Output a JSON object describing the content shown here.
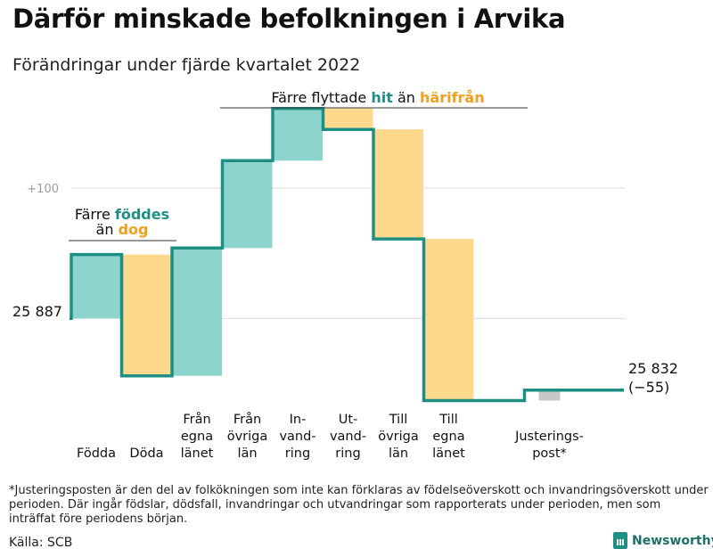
{
  "header": {
    "title": "Därför minskade befolkningen i Arvika",
    "subtitle": "Förändringar under fjärde kvartalet 2022"
  },
  "annotations": {
    "birth_group": {
      "prefix": "Färre ",
      "highlight1": "föddes",
      "line2_prefix": "än ",
      "highlight2": "dog"
    },
    "migration_group": {
      "prefix": "Färre flyttade ",
      "highlight1": "hit",
      "middle": " än ",
      "highlight2": "härifrån"
    },
    "start_label": "25 887",
    "end_label_line1": "25 832",
    "end_label_line2": "(−55)"
  },
  "colors": {
    "increase": "#8dd5cc",
    "decrease": "#fdd98e",
    "adjustment": "#c8c8c8",
    "line": "#1f8f86",
    "teal_text": "#1f8f86",
    "orange_text": "#f0a020",
    "grid": "#d9d9d9"
  },
  "chart_data": {
    "type": "waterfall",
    "start_value": 25887,
    "end_value": 25832,
    "net_change": -55,
    "yticks": [
      {
        "value": 25987,
        "label": "+100"
      }
    ],
    "ylim": [
      25825,
      26041
    ],
    "grid": true,
    "steps": [
      {
        "label_lines": [
          "",
          "",
          "Födda"
        ],
        "value": 49,
        "kind": "increase"
      },
      {
        "label_lines": [
          "",
          "",
          "Döda"
        ],
        "value": -93,
        "kind": "decrease"
      },
      {
        "label_lines": [
          "Från",
          "egna",
          "länet"
        ],
        "value": 98,
        "kind": "increase"
      },
      {
        "label_lines": [
          "Från",
          "övriga",
          "län"
        ],
        "value": 67,
        "kind": "increase"
      },
      {
        "label_lines": [
          "In-",
          "vand-",
          "ring"
        ],
        "value": 40,
        "kind": "increase"
      },
      {
        "label_lines": [
          "Ut-",
          "vand-",
          "ring"
        ],
        "value": -16,
        "kind": "decrease"
      },
      {
        "label_lines": [
          "Till",
          "övriga",
          "län"
        ],
        "value": -84,
        "kind": "decrease"
      },
      {
        "label_lines": [
          "Till",
          "egna",
          "länet"
        ],
        "value": -124,
        "kind": "decrease"
      },
      {
        "label_lines": [
          "",
          "Justerings-",
          "post*"
        ],
        "value": 8,
        "kind": "adjustment"
      }
    ]
  },
  "footer": {
    "footnote": "*Justeringsposten är den del av folkökningen som inte kan förklaras av födelseöverskott och invandringsöverskott under perioden. Där ingår födslar, dödsfall, invandringar och utvandringar som rapporterats under perioden, men som inträffat före periodens början.",
    "source": "Källa: SCB",
    "brand": "Newsworthy"
  }
}
